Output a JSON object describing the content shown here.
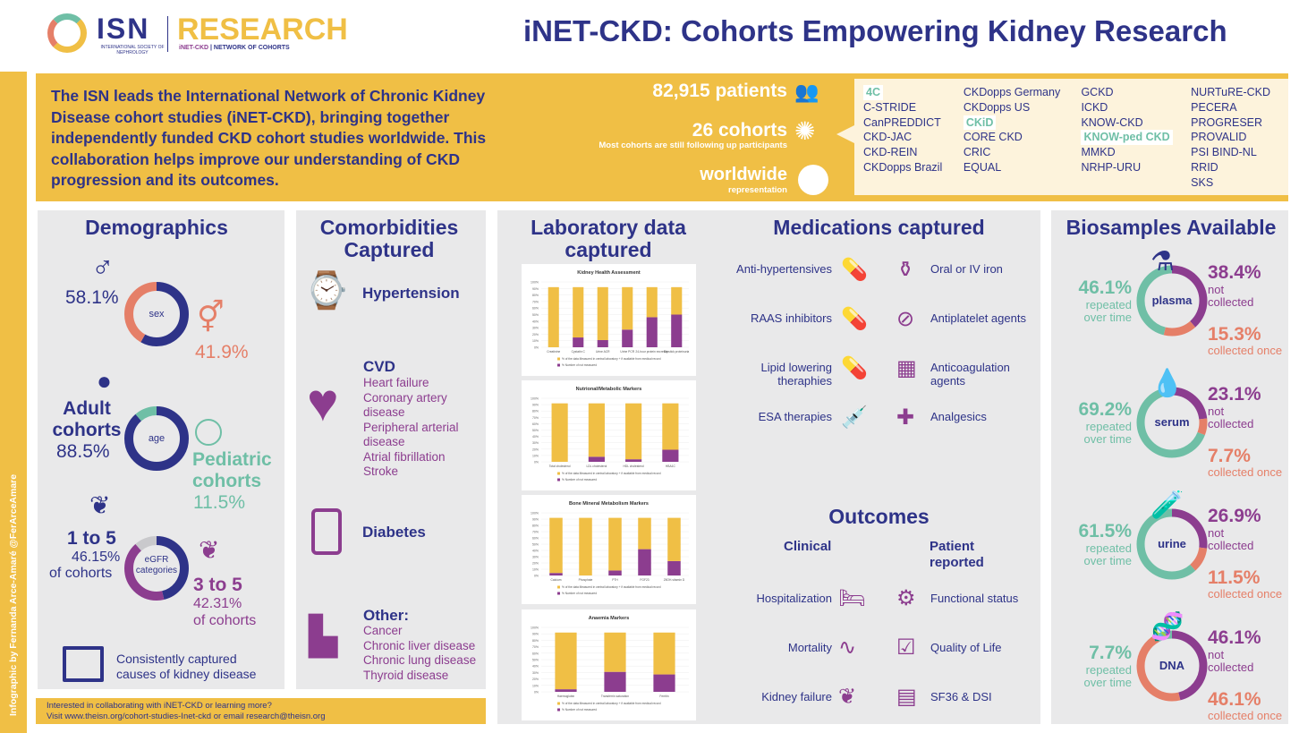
{
  "header": {
    "logo_isn": "ISN",
    "logo_isn_sub": "INTERNATIONAL SOCIETY OF NEPHROLOGY",
    "logo_research": "RESEARCH",
    "logo_inet": "iNET-CKD",
    "logo_network": "NETWORK OF COHORTS",
    "title": "iNET-CKD: Cohorts Empowering Kidney Research"
  },
  "side_credit": "Infographic by Fernanda Arce-Amaré @FerArceAmare",
  "intro": {
    "text": "The ISN leads the International Network of Chronic Kidney Disease cohort studies (iNET-CKD), bringing together independently funded CKD cohort studies worldwide. This collaboration helps improve our understanding of CKD progression and its outcomes.",
    "patients": "82,915 patients",
    "cohorts": "26 cohorts",
    "cohorts_note": "Most cohorts are still following up participants",
    "worldwide": "worldwide",
    "worldwide_note": "representation"
  },
  "cohort_columns": [
    [
      {
        "name": "4C",
        "ped": true
      },
      {
        "name": "C-STRIDE"
      },
      {
        "name": "CanPREDDICT"
      },
      {
        "name": "CKD-JAC"
      },
      {
        "name": "CKD-REIN"
      },
      {
        "name": "CKDopps Brazil"
      }
    ],
    [
      {
        "name": "CKDopps Germany"
      },
      {
        "name": "CKDopps US"
      },
      {
        "name": "CKiD",
        "ped": true
      },
      {
        "name": "CORE CKD"
      },
      {
        "name": "CRIC"
      },
      {
        "name": "EQUAL"
      }
    ],
    [
      {
        "name": "GCKD"
      },
      {
        "name": "ICKD"
      },
      {
        "name": "KNOW-CKD"
      },
      {
        "name": "KNOW-ped CKD",
        "ped": true
      },
      {
        "name": "MMKD"
      },
      {
        "name": "NRHP-URU"
      }
    ],
    [
      {
        "name": "NURTuRE-CKD"
      },
      {
        "name": "PECERA"
      },
      {
        "name": "PROGRESER"
      },
      {
        "name": "PROVALID"
      },
      {
        "name": "PSI BIND-NL"
      },
      {
        "name": "RRID"
      },
      {
        "name": "SKS"
      }
    ]
  ],
  "demographics": {
    "title": "Demographics",
    "sex_label": "sex",
    "male_pct": "58.1%",
    "female_pct": "41.9%",
    "male_value": 58.1,
    "adult_label": "Adult cohorts",
    "adult_pct": "88.5%",
    "age_label": "age",
    "ped_label": "Pediatric cohorts",
    "ped_pct": "11.5%",
    "adult_value": 88.5,
    "egfr_label": "eGFR categories",
    "egfr_a": "1 to 5",
    "egfr_a_pct": "46.15%",
    "egfr_a_note": "of cohorts",
    "egfr_b": "3 to 5",
    "egfr_b_pct": "42.31%",
    "egfr_b_note": "of cohorts",
    "egfr_a_value": 46.15,
    "egfr_b_value": 42.31,
    "causes": "Consistently captured causes of kidney disease"
  },
  "comorbidities": {
    "title": "Comorbidities Captured",
    "hypertension": "Hypertension",
    "cvd": "CVD",
    "cvd_items": [
      "Heart failure",
      "Coronary artery disease",
      "Peripheral arterial disease",
      "Atrial fibrillation",
      "Stroke"
    ],
    "diabetes": "Diabetes",
    "other": "Other:",
    "other_items": [
      "Cancer",
      "Chronic liver disease",
      "Chronic lung disease",
      "Thyroid disease"
    ]
  },
  "lab": {
    "title": "Laboratory data captured"
  },
  "chart_data": [
    {
      "type": "bar",
      "stacked": true,
      "title": "Kidney Health Assessment",
      "categories": [
        "Creatinine",
        "Cystatin C",
        "Urine ACR",
        "Urine PCR",
        "24-hour protein excretion",
        "Dipstick proteinuria"
      ],
      "series": [
        {
          "name": "% of the data Measured in central laboratory + if available from medical record",
          "values": [
            92,
            77,
            81,
            65,
            46,
            42
          ]
        },
        {
          "name": "% Number of not measured",
          "values": [
            0,
            15,
            11,
            27,
            46,
            50
          ]
        }
      ],
      "yticks": [
        "0%",
        "10%",
        "20%",
        "30%",
        "40%",
        "50%",
        "60%",
        "70%",
        "80%",
        "90%",
        "100%"
      ],
      "ylim": [
        0,
        100
      ]
    },
    {
      "type": "bar",
      "stacked": true,
      "title": "Nutrional/Metabolic Markers",
      "categories": [
        "Total cholesterol",
        "LDL cholesterol",
        "HDL cholesterol",
        "HBA1C"
      ],
      "series": [
        {
          "name": "% of the data Measured in central laboratory + if available from medical record",
          "values": [
            92,
            84,
            88,
            73
          ]
        },
        {
          "name": "% Number of not measured",
          "values": [
            0,
            8,
            4,
            19
          ]
        }
      ],
      "yticks": [
        "0%",
        "10%",
        "20%",
        "30%",
        "40%",
        "50%",
        "60%",
        "70%",
        "80%",
        "90%",
        "100%"
      ],
      "ylim": [
        0,
        100
      ]
    },
    {
      "type": "bar",
      "stacked": true,
      "title": "Bone Mineral Metabolism Markers",
      "categories": [
        "Calcium",
        "Phosphate",
        "PTH",
        "FGF23",
        "25OH-vitamin D"
      ],
      "series": [
        {
          "name": "% of the data Measured in central laboratory + if available from medical record",
          "values": [
            88,
            92,
            84,
            50,
            69
          ]
        },
        {
          "name": "% Number of not measured",
          "values": [
            4,
            0,
            8,
            42,
            23
          ]
        }
      ],
      "yticks": [
        "0%",
        "10%",
        "20%",
        "30%",
        "40%",
        "50%",
        "60%",
        "70%",
        "80%",
        "90%",
        "100%"
      ],
      "ylim": [
        0,
        100
      ]
    },
    {
      "type": "bar",
      "stacked": true,
      "title": "Anaemia Markers",
      "categories": [
        "Haemoglobin",
        "Transferrin saturation",
        "Ferritin"
      ],
      "series": [
        {
          "name": "% of the data Measured in central laboratory + if available from medical record",
          "values": [
            88,
            61,
            65
          ]
        },
        {
          "name": "% Number of not measured",
          "values": [
            4,
            31,
            27
          ]
        }
      ],
      "yticks": [
        "0%",
        "10%",
        "20%",
        "30%",
        "40%",
        "50%",
        "60%",
        "70%",
        "80%",
        "90%",
        "100%"
      ],
      "ylim": [
        0,
        100
      ]
    }
  ],
  "medications": {
    "title": "Medications captured",
    "items": [
      "Anti-hypertensives",
      "Oral or IV iron",
      "RAAS inhibitors",
      "Antiplatelet agents",
      "Lipid lowering theraphies",
      "Anticoagulation agents",
      "ESA therapies",
      "Analgesics"
    ]
  },
  "outcomes": {
    "title": "Outcomes",
    "clinical": "Clinical",
    "patient": "Patient reported",
    "clinical_items": [
      "Hospitalization",
      "Mortality",
      "Kidney failure"
    ],
    "patient_items": [
      "Functional status",
      "Quality of Life",
      "SF36 & DSI"
    ]
  },
  "biosamples": {
    "title": "Biosamples Available",
    "repeated_label": "repeated over time",
    "not_label": "not collected",
    "once_label": "collected once",
    "items": [
      {
        "name": "plasma",
        "repeated": "46.1%",
        "not": "38.4%",
        "once": "15.3%",
        "r": 46.1,
        "n": 38.4,
        "o": 15.3
      },
      {
        "name": "serum",
        "repeated": "69.2%",
        "not": "23.1%",
        "once": "7.7%",
        "r": 69.2,
        "n": 23.1,
        "o": 7.7
      },
      {
        "name": "urine",
        "repeated": "61.5%",
        "not": "26.9%",
        "once": "11.5%",
        "r": 61.5,
        "n": 26.9,
        "o": 11.5
      },
      {
        "name": "DNA",
        "repeated": "7.7%",
        "not": "46.1%",
        "once": "46.1%",
        "r": 7.7,
        "n": 46.1,
        "o": 46.1
      }
    ]
  },
  "footer": {
    "line1": "Interested in collaborating with iNET-CKD or learning more?",
    "line2": "Visit www.theisn.org/cohort-studies-Inet-ckd or email research@theisn.org"
  },
  "colors": {
    "navy": "#2e3388",
    "yellow": "#f0bf45",
    "purple": "#8c3d8f",
    "salmon": "#e57f68",
    "teal": "#6fbfa6",
    "panel": "#e9e9ea"
  }
}
